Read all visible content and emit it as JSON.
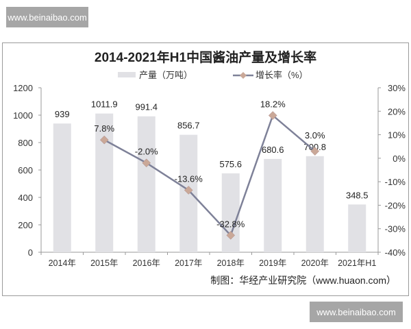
{
  "watermark_top": "www.beinaibao.com",
  "watermark_bottom": "www.beinaibao.com",
  "source": "制图：华经产业研究院（www.huaon.com）",
  "chart_data": {
    "type": "bar+line",
    "title": "2014-2021年H1中国酱油产量及增长率",
    "categories": [
      "2014年",
      "2015年",
      "2016年",
      "2017年",
      "2018年",
      "2019年",
      "2020年",
      "2021年H1"
    ],
    "series": [
      {
        "name": "产量（万吨）",
        "type": "bar",
        "axis": "left",
        "color": "#e1e1e5",
        "values": [
          939,
          1011.9,
          991.4,
          856.7,
          575.6,
          680.6,
          700.8,
          348.5
        ],
        "labels": [
          "939",
          "1011.9",
          "991.4",
          "856.7",
          "575.6",
          "680.6",
          "700.8",
          "348.5"
        ]
      },
      {
        "name": "增长率（%）",
        "type": "line",
        "axis": "right",
        "color": "#7e8198",
        "marker_color": "#caa898",
        "values": [
          null,
          7.8,
          -2.0,
          -13.6,
          -32.8,
          18.2,
          3.0,
          null
        ],
        "labels": [
          "",
          "7.8%",
          "-2.0%",
          "-13.6%",
          "-32.8%",
          "18.2%",
          "3.0%",
          ""
        ]
      }
    ],
    "y_left": {
      "min": 0,
      "max": 1200,
      "ticks": [
        "0",
        "200",
        "400",
        "600",
        "800",
        "1000",
        "1200"
      ]
    },
    "y_right": {
      "min": -40,
      "max": 30,
      "ticks": [
        "-40%",
        "-30%",
        "-20%",
        "-10%",
        "0%",
        "10%",
        "20%",
        "30%"
      ]
    },
    "legend": "top",
    "grid": false
  }
}
